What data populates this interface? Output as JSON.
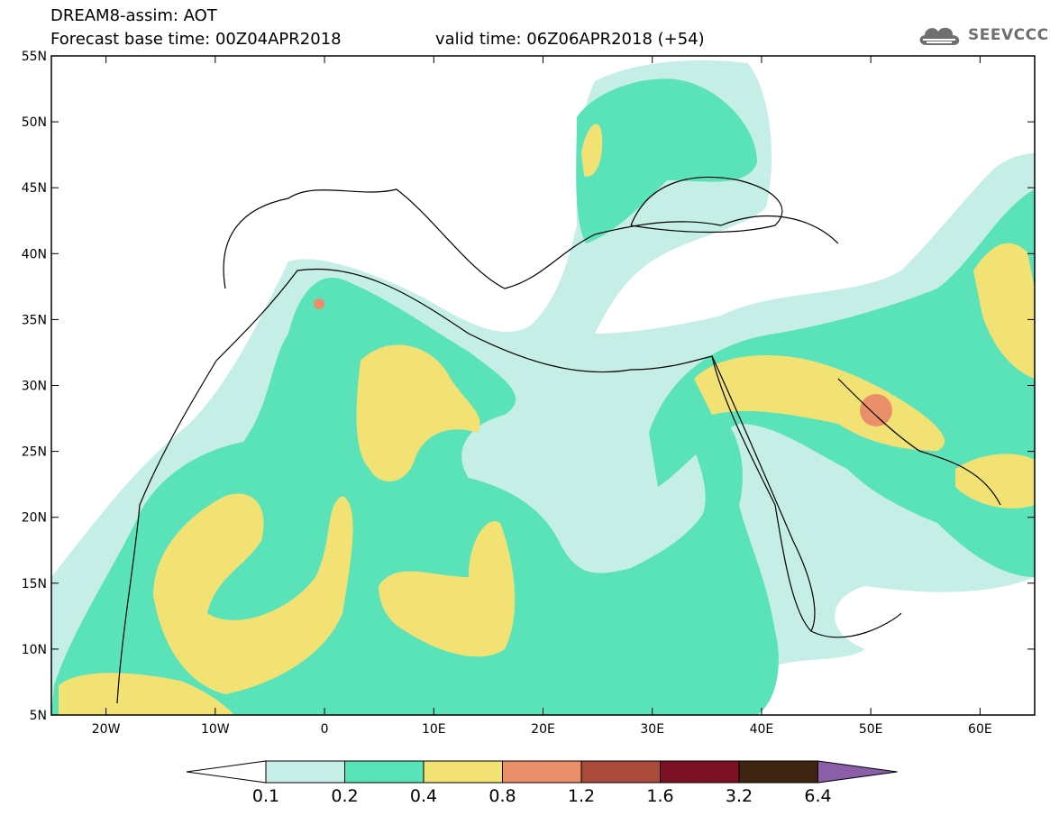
{
  "header": {
    "title": "DREAM8-assim: AOT",
    "base_time": "Forecast base time: 00Z04APR2018",
    "valid_time": "valid time: 06Z06APR2018 (+54)"
  },
  "logo": {
    "text": "SEEVCCC",
    "icon": "cloud-icon"
  },
  "map": {
    "lon_ticks": [
      "20W",
      "10W",
      "0",
      "10E",
      "20E",
      "30E",
      "40E",
      "50E",
      "60E"
    ],
    "lat_ticks": [
      "55N",
      "50N",
      "45N",
      "40N",
      "35N",
      "30N",
      "25N",
      "20N",
      "15N",
      "10N",
      "5N"
    ],
    "extent": {
      "lon": [
        -25,
        65
      ],
      "lat": [
        5,
        55
      ]
    }
  },
  "legend": {
    "labels": [
      "0.1",
      "0.2",
      "0.4",
      "0.8",
      "1.2",
      "1.6",
      "3.2",
      "6.4"
    ],
    "colors": [
      "#c4eee6",
      "#5ae2b8",
      "#f2e274",
      "#e9906a",
      "#a94a3a",
      "#7c1024",
      "#3c2410",
      "#8b5ea8"
    ]
  }
}
